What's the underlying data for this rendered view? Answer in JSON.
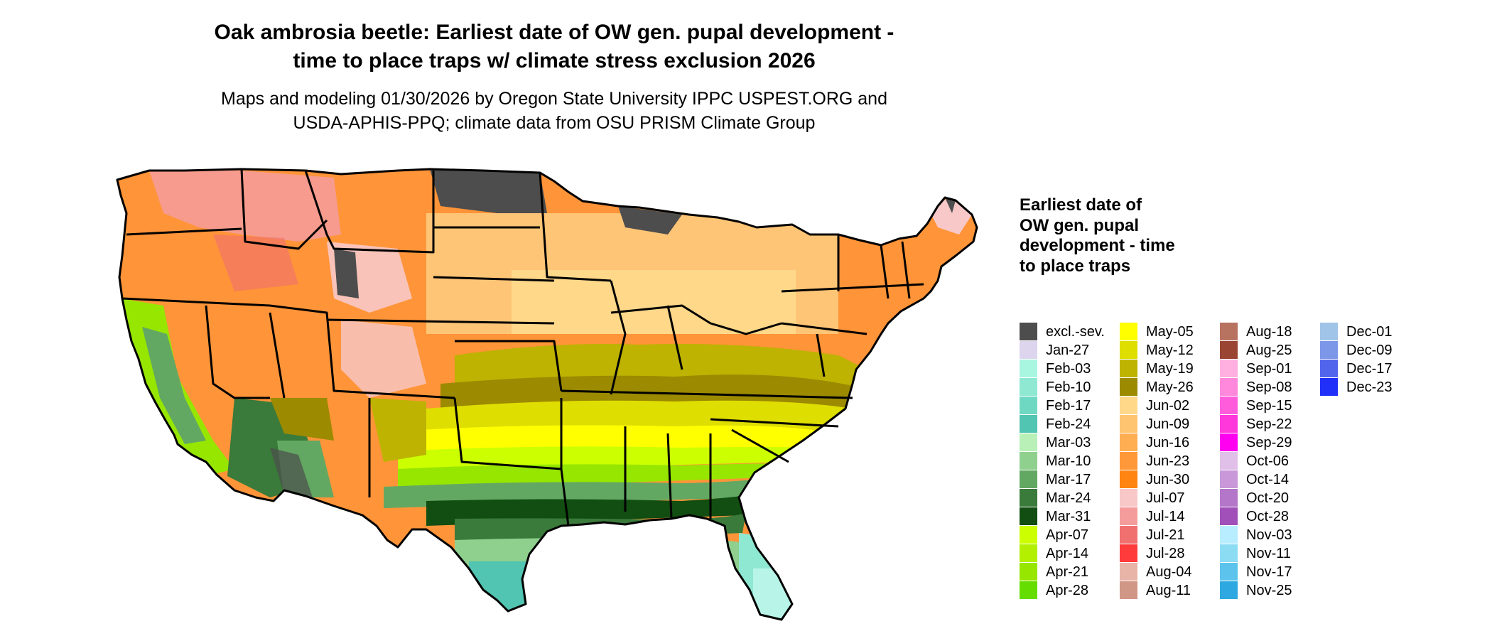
{
  "title_line1": "Oak ambrosia beetle: Earliest date of OW gen. pupal development -",
  "title_line2": "time to place traps w/ climate stress exclusion 2026",
  "subtitle_line1": "Maps and modeling 01/30/2026 by Oregon State University IPPC USPEST.ORG and",
  "subtitle_line2": "USDA-APHIS-PPQ; climate data from OSU PRISM Climate Group",
  "legend": {
    "title": "Earliest date of OW gen. pupal development - time to place traps",
    "columns": [
      [
        {
          "label": "excl.-sev.",
          "color": "#4d4d4d"
        },
        {
          "label": "Jan-27",
          "color": "#ddd5ee"
        },
        {
          "label": "Feb-03",
          "color": "#a8f5e0"
        },
        {
          "label": "Feb-10",
          "color": "#8ee8d2"
        },
        {
          "label": "Feb-17",
          "color": "#6fd8c2"
        },
        {
          "label": "Feb-24",
          "color": "#52c4b2"
        },
        {
          "label": "Mar-03",
          "color": "#b8f0b8"
        },
        {
          "label": "Mar-10",
          "color": "#8fd08f"
        },
        {
          "label": "Mar-17",
          "color": "#62a862"
        },
        {
          "label": "Mar-24",
          "color": "#3a7a3a"
        },
        {
          "label": "Mar-31",
          "color": "#124d12"
        },
        {
          "label": "Apr-07",
          "color": "#ccff00"
        },
        {
          "label": "Apr-14",
          "color": "#b2f000"
        },
        {
          "label": "Apr-21",
          "color": "#96e600"
        },
        {
          "label": "Apr-28",
          "color": "#66dd00"
        }
      ],
      [
        {
          "label": "May-05",
          "color": "#ffff00"
        },
        {
          "label": "May-12",
          "color": "#dede00"
        },
        {
          "label": "May-19",
          "color": "#bdb300"
        },
        {
          "label": "May-26",
          "color": "#9c8a00"
        },
        {
          "label": "Jun-02",
          "color": "#ffd88a"
        },
        {
          "label": "Jun-09",
          "color": "#ffc470"
        },
        {
          "label": "Jun-16",
          "color": "#ffae52"
        },
        {
          "label": "Jun-23",
          "color": "#ff9838"
        },
        {
          "label": "Jun-30",
          "color": "#ff8412"
        },
        {
          "label": "Jul-07",
          "color": "#f8c8c8"
        },
        {
          "label": "Jul-14",
          "color": "#f49c9c"
        },
        {
          "label": "Jul-21",
          "color": "#f07070"
        },
        {
          "label": "Jul-28",
          "color": "#ff3b3b"
        },
        {
          "label": "Aug-04",
          "color": "#e8b4a8"
        },
        {
          "label": "Aug-11",
          "color": "#d09686"
        }
      ],
      [
        {
          "label": "Aug-18",
          "color": "#b87260"
        },
        {
          "label": "Aug-25",
          "color": "#9a4434"
        },
        {
          "label": "Sep-01",
          "color": "#ffb0e0"
        },
        {
          "label": "Sep-08",
          "color": "#ff88dc"
        },
        {
          "label": "Sep-15",
          "color": "#ff5cdc"
        },
        {
          "label": "Sep-22",
          "color": "#ff38dc"
        },
        {
          "label": "Sep-29",
          "color": "#ff00f0"
        },
        {
          "label": "Oct-06",
          "color": "#e0c0e8"
        },
        {
          "label": "Oct-14",
          "color": "#c898d8"
        },
        {
          "label": "Oct-20",
          "color": "#b476c8"
        },
        {
          "label": "Oct-28",
          "color": "#a050b8"
        },
        {
          "label": "Nov-03",
          "color": "#b8ecff"
        },
        {
          "label": "Nov-11",
          "color": "#8cdcf4"
        },
        {
          "label": "Nov-17",
          "color": "#5cc4ec"
        },
        {
          "label": "Nov-25",
          "color": "#2ea8e0"
        }
      ],
      [
        {
          "label": "Dec-01",
          "color": "#a0c4e8"
        },
        {
          "label": "Dec-09",
          "color": "#7c96e8"
        },
        {
          "label": "Dec-17",
          "color": "#5064ec"
        },
        {
          "label": "Dec-23",
          "color": "#2030f8"
        }
      ]
    ]
  }
}
